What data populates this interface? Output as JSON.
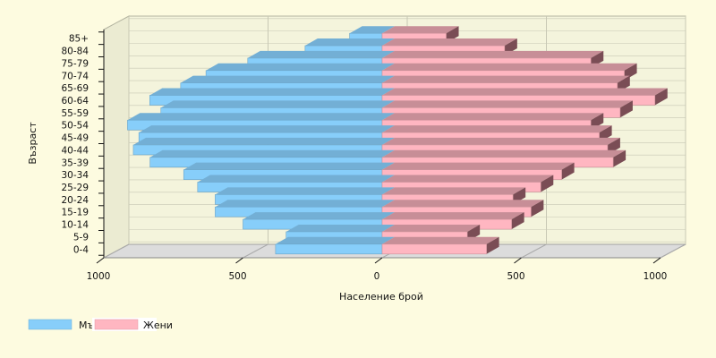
{
  "chart_data": {
    "type": "bar",
    "orientation": "horizontal",
    "style": "population-pyramid-3d",
    "xlabel": "Население брой",
    "ylabel": "Възраст",
    "xlim": [
      -1000,
      1000
    ],
    "x_ticks": [
      {
        "value": -1000,
        "label": "1000"
      },
      {
        "value": -500,
        "label": "500"
      },
      {
        "value": 0,
        "label": "0"
      },
      {
        "value": 500,
        "label": "500"
      },
      {
        "value": 1000,
        "label": "1000"
      }
    ],
    "grid": true,
    "legend_position": "bottom-left",
    "categories": [
      "0-4",
      "5-9",
      "10-14",
      "15-19",
      "20-24",
      "25-29",
      "30-34",
      "35-39",
      "40-44",
      "45-49",
      "50-54",
      "55-59",
      "60-64",
      "65-69",
      "70-74",
      "75-79",
      "80-84",
      "85+"
    ],
    "series": [
      {
        "name": "Мъже",
        "side": "left",
        "color": "#87cefa",
        "values": [
          383,
          345,
          500,
          600,
          600,
          663,
          713,
          834,
          894,
          874,
          915,
          795,
          835,
          724,
          633,
          483,
          277,
          117
        ]
      },
      {
        "name": "Жени",
        "side": "right",
        "color": "#ffb6c1",
        "values": [
          375,
          306,
          465,
          535,
          470,
          570,
          645,
          830,
          810,
          780,
          750,
          855,
          980,
          845,
          870,
          750,
          440,
          230
        ]
      }
    ]
  },
  "colors": {
    "background": "#fdfbe0",
    "plot_back": "#f4f4dc",
    "plot_floor": "#dcdcdc",
    "grid": "#c8c8b4",
    "axis": "#111111"
  }
}
